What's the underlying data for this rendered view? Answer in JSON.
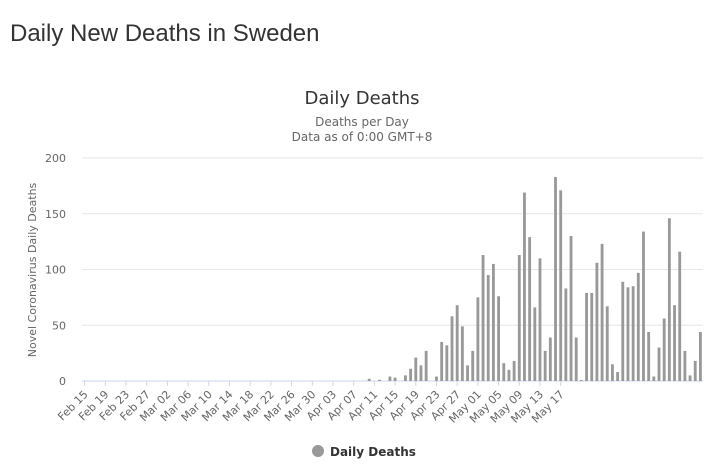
{
  "page": {
    "title": "Daily New Deaths in Sweden"
  },
  "chart_data": {
    "type": "bar",
    "title": "Daily Deaths",
    "subtitle_line1": "Deaths per Day",
    "subtitle_line2": "Data as of 0:00 GMT+8",
    "ylabel": "Novel Coronavirus Daily Deaths",
    "xlabel": "",
    "ylim": [
      0,
      200
    ],
    "yticks": [
      0,
      50,
      100,
      150,
      200
    ],
    "grid": true,
    "legend_position": "bottom-center",
    "bar_color": "#999999",
    "series": [
      {
        "name": "Daily Deaths",
        "values": [
          0,
          0,
          0,
          0,
          0,
          0,
          0,
          0,
          0,
          0,
          0,
          0,
          0,
          0,
          0,
          0,
          0,
          0,
          0,
          0,
          0,
          0,
          0,
          0,
          0,
          0,
          0,
          0,
          0,
          0,
          0,
          0,
          0,
          0,
          0,
          0,
          0,
          0,
          0,
          0,
          0,
          0,
          0,
          0,
          0,
          0,
          0,
          0,
          0,
          0,
          0,
          0,
          0,
          0,
          0,
          2,
          0,
          1,
          0,
          4,
          3,
          0,
          5,
          11,
          21,
          14,
          27,
          0,
          4,
          35,
          32,
          58,
          68,
          49,
          14,
          27,
          75,
          113,
          95,
          105,
          76,
          16,
          10,
          18,
          113,
          169,
          129,
          66,
          110,
          27,
          39,
          183,
          171,
          83,
          130,
          39,
          1,
          79,
          79,
          106,
          123,
          67,
          15,
          8,
          89,
          84,
          85,
          97,
          134,
          44,
          4,
          30,
          56,
          146,
          68,
          116,
          27,
          5,
          18,
          44
        ]
      }
    ],
    "x_tick_labels": [
      "Feb 15",
      "Feb 19",
      "Feb 23",
      "Feb 27",
      "Mar 02",
      "Mar 06",
      "Mar 10",
      "Mar 14",
      "Mar 18",
      "Mar 22",
      "Mar 26",
      "Mar 30",
      "Apr 03",
      "Apr 07",
      "Apr 11",
      "Apr 15",
      "Apr 19",
      "Apr 23",
      "Apr 27",
      "May 01",
      "May 05",
      "May 09",
      "May 13",
      "May 17"
    ]
  }
}
